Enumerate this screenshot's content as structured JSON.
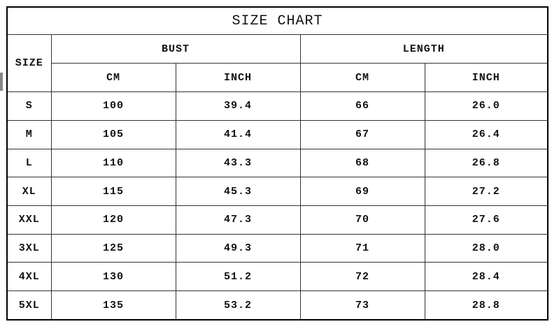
{
  "title": "SIZE CHART",
  "headers": {
    "size": "SIZE",
    "bust": "BUST",
    "length": "LENGTH",
    "bust_cm": "CM",
    "bust_inch": "INCH",
    "length_cm": "CM",
    "length_inch": "INCH"
  },
  "rows": [
    {
      "size": "S",
      "bust_cm": "100",
      "bust_inch": "39.4",
      "length_cm": "66",
      "length_inch": "26.0"
    },
    {
      "size": "M",
      "bust_cm": "105",
      "bust_inch": "41.4",
      "length_cm": "67",
      "length_inch": "26.4"
    },
    {
      "size": "L",
      "bust_cm": "110",
      "bust_inch": "43.3",
      "length_cm": "68",
      "length_inch": "26.8"
    },
    {
      "size": "XL",
      "bust_cm": "115",
      "bust_inch": "45.3",
      "length_cm": "69",
      "length_inch": "27.2"
    },
    {
      "size": "XXL",
      "bust_cm": "120",
      "bust_inch": "47.3",
      "length_cm": "70",
      "length_inch": "27.6"
    },
    {
      "size": "3XL",
      "bust_cm": "125",
      "bust_inch": "49.3",
      "length_cm": "71",
      "length_inch": "28.0"
    },
    {
      "size": "4XL",
      "bust_cm": "130",
      "bust_inch": "51.2",
      "length_cm": "72",
      "length_inch": "28.4"
    },
    {
      "size": "5XL",
      "bust_cm": "135",
      "bust_inch": "53.2",
      "length_cm": "73",
      "length_inch": "28.8"
    }
  ]
}
